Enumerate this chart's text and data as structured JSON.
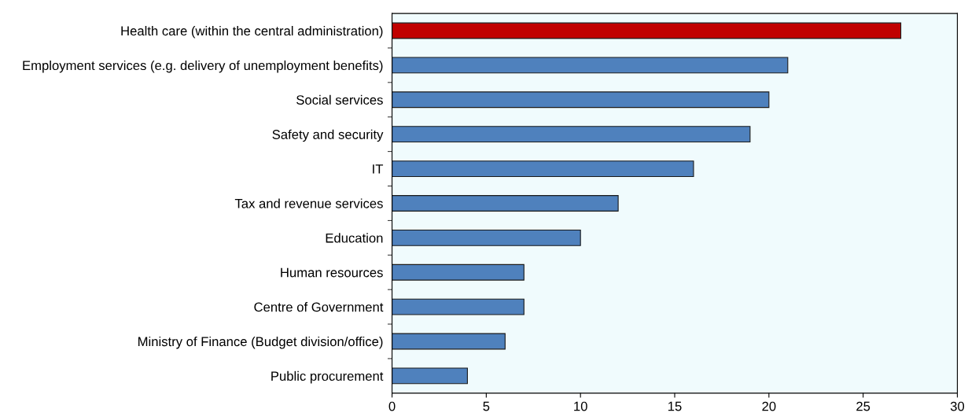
{
  "chart_data": {
    "type": "bar",
    "orientation": "horizontal",
    "categories": [
      "Health care (within the central administration)",
      "Employment services (e.g. delivery of unemployment benefits)",
      "Social services",
      "Safety and security",
      "IT",
      "Tax and revenue services",
      "Education",
      "Human resources",
      "Centre of Government",
      "Ministry of Finance (Budget division/office)",
      "Public procurement"
    ],
    "values": [
      27,
      21,
      20,
      19,
      16,
      12,
      10,
      7,
      7,
      6,
      4
    ],
    "colors": [
      "#c00000",
      "#4f81bd",
      "#4f81bd",
      "#4f81bd",
      "#4f81bd",
      "#4f81bd",
      "#4f81bd",
      "#4f81bd",
      "#4f81bd",
      "#4f81bd",
      "#4f81bd"
    ],
    "xlim": [
      0,
      30
    ],
    "xticks": [
      0,
      5,
      10,
      15,
      20,
      25,
      30
    ],
    "grid": false,
    "legend": false
  }
}
